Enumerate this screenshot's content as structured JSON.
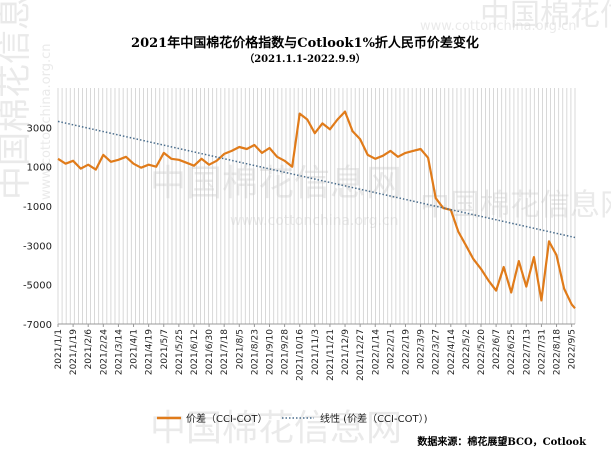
{
  "watermarks": [
    {
      "text": "中国棉花信息网",
      "size": "big"
    },
    {
      "text": "www.cottonchina.org.cn",
      "size": "small"
    }
  ],
  "chart_data": {
    "type": "line",
    "title": "2021年中国棉花价格指数与Cotlook1%折人民币价差变化",
    "subtitle": "（2021.1.1-2022.9.9）",
    "xlabel": "",
    "ylabel": "",
    "ylim": [
      -7000,
      5000
    ],
    "y_ticks": [
      3000,
      1000,
      -1000,
      -3000,
      -5000,
      -7000
    ],
    "grid": {
      "vertical": true,
      "horizontal": false
    },
    "legend_position": "bottom-left",
    "x_ticks": [
      "2021/1/1",
      "2021/1/19",
      "2021/2/6",
      "2021/2/24",
      "2021/3/14",
      "2021/4/1",
      "2021/4/19",
      "2021/5/7",
      "2021/5/25",
      "2021/6/12",
      "2021/6/30",
      "2021/7/18",
      "2021/8/5",
      "2021/8/23",
      "2021/9/10",
      "2021/9/28",
      "2021/10/16",
      "2021/11/3",
      "2021/11/21",
      "2021/12/9",
      "2021/12/27",
      "2022/1/14",
      "2022/2/1",
      "2022/2/19",
      "2022/3/9",
      "2022/3/27",
      "2022/4/14",
      "2022/5/2",
      "2022/5/20",
      "2022/6/7",
      "2022/6/25",
      "2022/7/13",
      "2022/7/31",
      "2022/8/18",
      "2022/9/5"
    ],
    "series": [
      {
        "name": "价差（CCI-COT）",
        "color": "#e07b1a",
        "style": "solid",
        "x": [
          "2021/1/1",
          "2021/1/10",
          "2021/1/19",
          "2021/1/28",
          "2021/2/6",
          "2021/2/15",
          "2021/2/24",
          "2021/3/5",
          "2021/3/14",
          "2021/3/23",
          "2021/4/1",
          "2021/4/10",
          "2021/4/19",
          "2021/4/28",
          "2021/5/7",
          "2021/5/16",
          "2021/5/25",
          "2021/6/3",
          "2021/6/12",
          "2021/6/21",
          "2021/6/30",
          "2021/7/9",
          "2021/7/18",
          "2021/7/27",
          "2021/8/5",
          "2021/8/14",
          "2021/8/23",
          "2021/9/1",
          "2021/9/10",
          "2021/9/19",
          "2021/9/28",
          "2021/10/7",
          "2021/10/16",
          "2021/10/25",
          "2021/11/3",
          "2021/11/12",
          "2021/11/21",
          "2021/11/30",
          "2021/12/9",
          "2021/12/18",
          "2021/12/27",
          "2022/1/5",
          "2022/1/14",
          "2022/1/23",
          "2022/2/1",
          "2022/2/10",
          "2022/2/19",
          "2022/2/28",
          "2022/3/9",
          "2022/3/18",
          "2022/3/27",
          "2022/4/5",
          "2022/4/14",
          "2022/4/23",
          "2022/5/2",
          "2022/5/11",
          "2022/5/20",
          "2022/5/29",
          "2022/6/7",
          "2022/6/16",
          "2022/6/25",
          "2022/7/4",
          "2022/7/13",
          "2022/7/22",
          "2022/7/31",
          "2022/8/9",
          "2022/8/18",
          "2022/8/27",
          "2022/9/5",
          "2022/9/9"
        ],
        "values": [
          1400,
          1150,
          1300,
          900,
          1100,
          850,
          1600,
          1250,
          1350,
          1500,
          1150,
          950,
          1100,
          1000,
          1700,
          1400,
          1350,
          1200,
          1050,
          1400,
          1100,
          1300,
          1650,
          1800,
          2000,
          1900,
          2100,
          1700,
          1950,
          1500,
          1300,
          1000,
          3700,
          3400,
          2700,
          3200,
          2900,
          3400,
          3800,
          2800,
          2400,
          1600,
          1400,
          1550,
          1800,
          1500,
          1700,
          1800,
          1900,
          1450,
          -600,
          -1100,
          -1200,
          -2300,
          -3000,
          -3700,
          -4200,
          -4800,
          -5300,
          -4100,
          -5400,
          -3800,
          -5100,
          -3600,
          -5800,
          -2800,
          -3500,
          -5200,
          -6000,
          -6200
        ]
      },
      {
        "name": "线性 (价差（CCI-COT）)",
        "color": "#4a6d8c",
        "style": "dotted",
        "x": [
          "2021/1/1",
          "2022/9/9"
        ],
        "values": [
          3300,
          -2600
        ]
      }
    ]
  },
  "legend": [
    {
      "label": "价差（CCI-COT）"
    },
    {
      "label": "线性 (价差（CCI-COT）)"
    }
  ],
  "source_text": "数据来源：棉花展望BCO，Cotlook"
}
